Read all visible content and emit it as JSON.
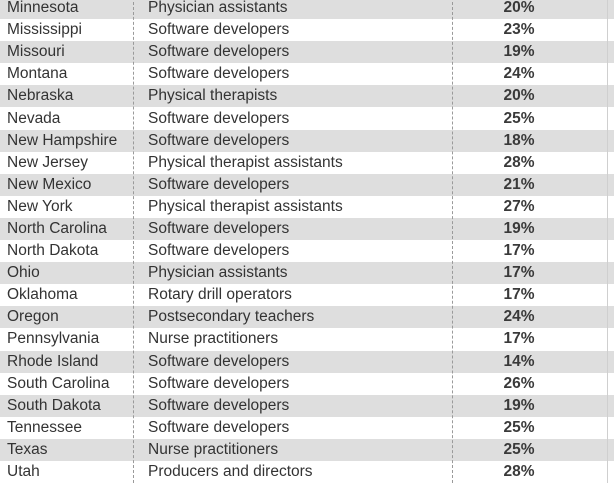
{
  "rows": [
    {
      "state": "Minnesota",
      "occupation": "Physician assistants",
      "growth": "20%"
    },
    {
      "state": "Mississippi",
      "occupation": "Software developers",
      "growth": "23%"
    },
    {
      "state": "Missouri",
      "occupation": "Software developers",
      "growth": "19%"
    },
    {
      "state": "Montana",
      "occupation": "Software developers",
      "growth": "24%"
    },
    {
      "state": "Nebraska",
      "occupation": "Physical therapists",
      "growth": "20%"
    },
    {
      "state": "Nevada",
      "occupation": "Software developers",
      "growth": "25%"
    },
    {
      "state": "New Hampshire",
      "occupation": "Software developers",
      "growth": "18%"
    },
    {
      "state": "New Jersey",
      "occupation": "Physical therapist assistants",
      "growth": "28%"
    },
    {
      "state": "New Mexico",
      "occupation": "Software developers",
      "growth": "21%"
    },
    {
      "state": "New York",
      "occupation": "Physical therapist assistants",
      "growth": "27%"
    },
    {
      "state": "North Carolina",
      "occupation": "Software developers",
      "growth": "19%"
    },
    {
      "state": "North Dakota",
      "occupation": "Software developers",
      "growth": "17%"
    },
    {
      "state": "Ohio",
      "occupation": "Physician assistants",
      "growth": "17%"
    },
    {
      "state": "Oklahoma",
      "occupation": "Rotary drill operators",
      "growth": "17%"
    },
    {
      "state": "Oregon",
      "occupation": "Postsecondary teachers",
      "growth": "24%"
    },
    {
      "state": "Pennsylvania",
      "occupation": "Nurse practitioners",
      "growth": "17%"
    },
    {
      "state": "Rhode Island",
      "occupation": "Software developers",
      "growth": "14%"
    },
    {
      "state": "South Carolina",
      "occupation": "Software developers",
      "growth": "26%"
    },
    {
      "state": "South Dakota",
      "occupation": "Software developers",
      "growth": "19%"
    },
    {
      "state": "Tennessee",
      "occupation": "Software developers",
      "growth": "25%"
    },
    {
      "state": "Texas",
      "occupation": "Nurse practitioners",
      "growth": "25%"
    },
    {
      "state": "Utah",
      "occupation": "Producers and directors",
      "growth": "28%"
    }
  ],
  "colors": {
    "shade": "#dedede",
    "text": "#333333",
    "divider": "#9a9a9a"
  }
}
